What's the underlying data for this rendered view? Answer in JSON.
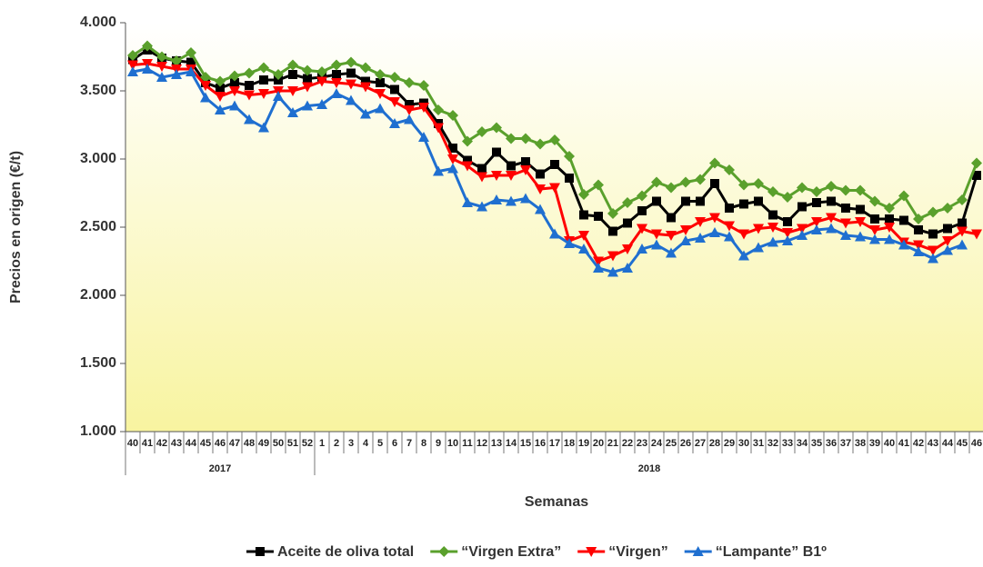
{
  "chart_data": {
    "type": "line",
    "y_title": "Precios en origen (€/t)",
    "x_title": "Semanas",
    "category_groups": [
      {
        "label": "2017",
        "categories": [
          "40",
          "41",
          "42",
          "43",
          "44",
          "45",
          "46",
          "47",
          "48",
          "49",
          "50",
          "51",
          "52"
        ]
      },
      {
        "label": "2018",
        "categories": [
          "1",
          "2",
          "3",
          "4",
          "5",
          "6",
          "7",
          "8",
          "9",
          "10",
          "11",
          "12",
          "13",
          "14",
          "15",
          "16",
          "17",
          "18",
          "19",
          "20",
          "21",
          "22",
          "23",
          "24",
          "25",
          "26",
          "27",
          "28",
          "29",
          "30",
          "31",
          "32",
          "33",
          "34",
          "35",
          "36",
          "37",
          "38",
          "39",
          "40",
          "41",
          "42",
          "43",
          "44",
          "45",
          "46"
        ]
      }
    ],
    "ylim": [
      1000,
      4000
    ],
    "yticks": [
      {
        "value": 1000,
        "label": "1.000"
      },
      {
        "value": 1500,
        "label": "1.500"
      },
      {
        "value": 2000,
        "label": "2.000"
      },
      {
        "value": 2500,
        "label": "2.500"
      },
      {
        "value": 3000,
        "label": "3.000"
      },
      {
        "value": 3500,
        "label": "3.500"
      },
      {
        "value": 4000,
        "label": "4.000"
      }
    ],
    "legend": "bottom",
    "series": [
      {
        "name": "Aceite de oliva total",
        "color": "#000000",
        "marker": "square",
        "values": [
          3730,
          3800,
          3740,
          3720,
          3710,
          3560,
          3520,
          3560,
          3540,
          3580,
          3580,
          3620,
          3590,
          3600,
          3620,
          3630,
          3570,
          3560,
          3510,
          3400,
          3410,
          3260,
          3080,
          2990,
          2930,
          3050,
          2950,
          2980,
          2890,
          2960,
          2860,
          2590,
          2580,
          2470,
          2530,
          2620,
          2690,
          2570,
          2690,
          2690,
          2820,
          2640,
          2670,
          2690,
          2590,
          2540,
          2650,
          2680,
          2690,
          2640,
          2630,
          2560,
          2560,
          2550,
          2480,
          2450,
          2490,
          2530,
          2880
        ]
      },
      {
        "name": "“Virgen Extra”",
        "color": "#5aa02c",
        "marker": "diamond",
        "values": [
          3760,
          3830,
          3750,
          3720,
          3780,
          3600,
          3570,
          3610,
          3630,
          3670,
          3620,
          3690,
          3650,
          3640,
          3690,
          3710,
          3670,
          3620,
          3600,
          3560,
          3540,
          3360,
          3320,
          3130,
          3200,
          3230,
          3150,
          3150,
          3110,
          3140,
          3020,
          2740,
          2810,
          2600,
          2680,
          2730,
          2830,
          2790,
          2830,
          2850,
          2970,
          2920,
          2810,
          2820,
          2760,
          2720,
          2790,
          2760,
          2800,
          2770,
          2770,
          2690,
          2640,
          2730,
          2560,
          2610,
          2640,
          2700,
          2970
        ]
      },
      {
        "name": "“Virgen”",
        "color": "#ff0000",
        "marker": "triangle-down",
        "values": [
          3690,
          3700,
          3680,
          3660,
          3660,
          3540,
          3460,
          3500,
          3470,
          3480,
          3500,
          3500,
          3530,
          3570,
          3560,
          3550,
          3530,
          3480,
          3420,
          3360,
          3380,
          3230,
          3000,
          2950,
          2870,
          2880,
          2880,
          2920,
          2780,
          2790,
          2400,
          2440,
          2250,
          2290,
          2340,
          2490,
          2450,
          2440,
          2480,
          2540,
          2570,
          2510,
          2450,
          2490,
          2500,
          2460,
          2490,
          2540,
          2570,
          2530,
          2540,
          2480,
          2500,
          2390,
          2370,
          2330,
          2400,
          2470,
          2450
        ]
      },
      {
        "name": "“Lampante” B1º",
        "color": "#1f6fd0",
        "marker": "triangle-up",
        "values": [
          3640,
          3660,
          3600,
          3620,
          3640,
          3450,
          3360,
          3390,
          3290,
          3230,
          3460,
          3340,
          3390,
          3400,
          3480,
          3430,
          3330,
          3370,
          3260,
          3290,
          3160,
          2910,
          2930,
          2680,
          2650,
          2700,
          2690,
          2710,
          2630,
          2450,
          2380,
          2340,
          2200,
          2170,
          2200,
          2340,
          2370,
          2310,
          2400,
          2420,
          2460,
          2430,
          2290,
          2350,
          2390,
          2400,
          2440,
          2480,
          2490,
          2440,
          2430,
          2410,
          2410,
          2370,
          2320,
          2270,
          2330,
          2370,
          null
        ]
      }
    ]
  }
}
